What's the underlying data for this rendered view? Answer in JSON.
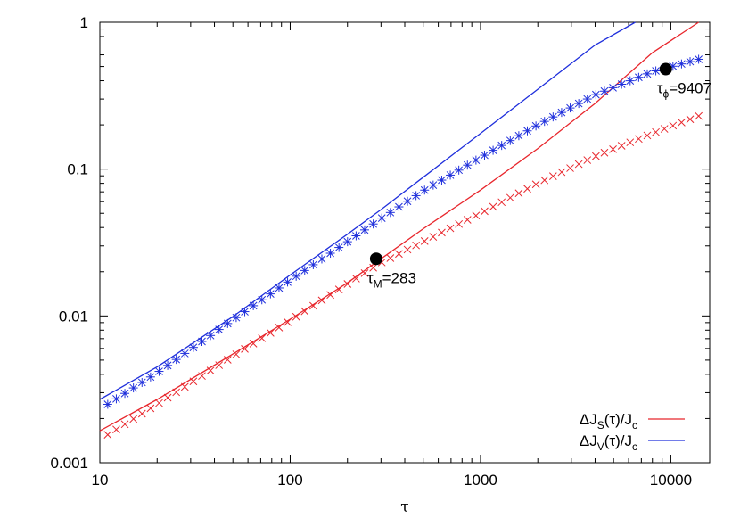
{
  "chart_data": {
    "type": "line",
    "xscale": "log",
    "yscale": "log",
    "xlim": [
      10,
      16000
    ],
    "ylim": [
      0.001,
      1
    ],
    "xlabel": "τ",
    "ylabel": "",
    "grid": false,
    "legend_placement": "bottom-right",
    "x_ticks": [
      10,
      100,
      1000,
      10000
    ],
    "x_tick_labels": [
      "10",
      "100",
      "1000",
      "10000"
    ],
    "y_ticks": [
      0.001,
      0.01,
      0.1,
      1
    ],
    "y_tick_labels": [
      "0.001",
      "0.01",
      "0.1",
      "1"
    ],
    "colors": {
      "red": "#e8262c",
      "blue": "#1f2fdc"
    },
    "series": [
      {
        "key": "s_fit",
        "name": "ΔJS(τ)/Jc",
        "color": "#e8262c",
        "style": "line",
        "x": [
          10,
          20,
          50,
          100,
          200,
          300,
          500,
          1000,
          2000,
          4000,
          8000,
          14000
        ],
        "y": [
          0.00165,
          0.0027,
          0.0055,
          0.0095,
          0.0168,
          0.0245,
          0.0392,
          0.072,
          0.138,
          0.28,
          0.62,
          1.0
        ]
      },
      {
        "key": "v_fit",
        "name": "ΔJV(τ)/Jc",
        "color": "#1f2fdc",
        "style": "line",
        "x": [
          10,
          20,
          50,
          100,
          200,
          300,
          500,
          1000,
          2000,
          4000,
          6500
        ],
        "y": [
          0.0027,
          0.0045,
          0.0099,
          0.019,
          0.036,
          0.053,
          0.088,
          0.175,
          0.35,
          0.7,
          1.0
        ]
      },
      {
        "key": "s_data",
        "color": "#e8262c",
        "style": "markers",
        "marker": "x",
        "x": [
          11,
          20,
          50,
          100,
          200,
          300,
          500,
          1000,
          2000,
          4000,
          8000,
          14000
        ],
        "y": [
          0.00155,
          0.0025,
          0.0053,
          0.0093,
          0.0165,
          0.023,
          0.032,
          0.05,
          0.08,
          0.122,
          0.175,
          0.23
        ]
      },
      {
        "key": "v_data",
        "color": "#1f2fdc",
        "style": "markers",
        "marker": "star",
        "x": [
          11,
          20,
          50,
          100,
          200,
          300,
          500,
          1000,
          2000,
          4000,
          8000,
          14000
        ],
        "y": [
          0.0025,
          0.0041,
          0.0094,
          0.0175,
          0.032,
          0.046,
          0.071,
          0.12,
          0.2,
          0.32,
          0.46,
          0.56
        ]
      }
    ],
    "annotations": [
      {
        "x": 283,
        "y": 0.0245,
        "label_main": "τ",
        "label_sub": "M",
        "label_rest": "=283"
      },
      {
        "x": 9407,
        "y": 0.48,
        "label_main": "τ",
        "label_sub": "ϕ",
        "label_rest": "=9407"
      }
    ],
    "legend": [
      {
        "prefix": "ΔJ",
        "sub": "S",
        "mid": "(τ)/J",
        "sub2": "c",
        "color": "#e8262c"
      },
      {
        "prefix": "ΔJ",
        "sub": "V",
        "mid": "(τ)/J",
        "sub2": "c",
        "color": "#1f2fdc"
      }
    ]
  }
}
